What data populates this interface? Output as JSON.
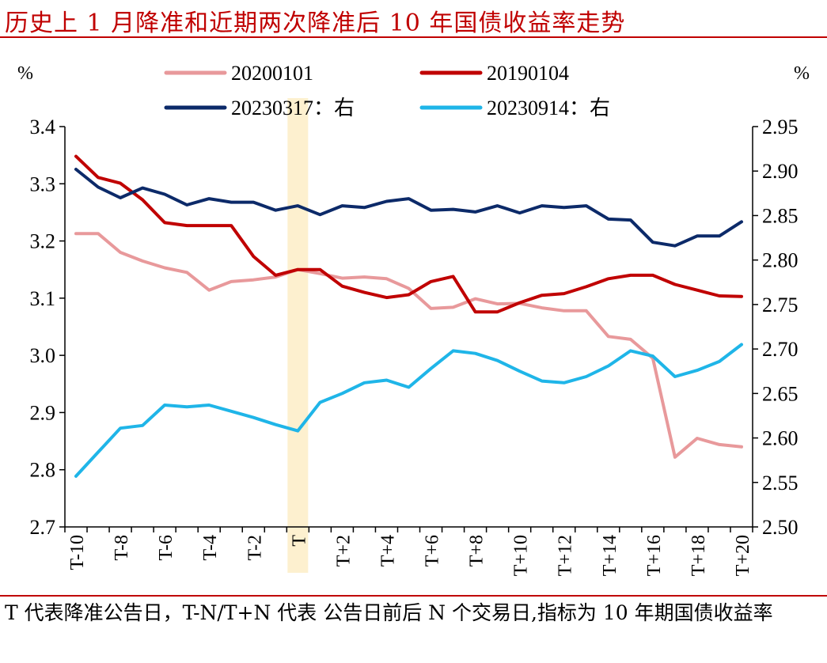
{
  "title": "历史上 1 月降准和近期两次降准后 10 年国债收益率走势",
  "footnote": "T 代表降准公告日，T-N/T+N 代表 公告日前后 N 个交易日,指标为 10 年期国债收益率",
  "colors": {
    "title": "#c00000",
    "rule": "#c00000",
    "highlight": "#fdf0cf",
    "s20200101": "#e8999b",
    "s20190104": "#c00000",
    "s20230317": "#0c2a69",
    "s20230914": "#1fb5e8"
  },
  "chart_data": {
    "type": "line",
    "x": [
      "T-10",
      "T-9",
      "T-8",
      "T-7",
      "T-6",
      "T-5",
      "T-4",
      "T-3",
      "T-2",
      "T-1",
      "T",
      "T+1",
      "T+2",
      "T+3",
      "T+4",
      "T+5",
      "T+6",
      "T+7",
      "T+8",
      "T+9",
      "T+10",
      "T+11",
      "T+12",
      "T+13",
      "T+14",
      "T+15",
      "T+16",
      "T+17",
      "T+18",
      "T+19",
      "T+20"
    ],
    "x_tick_labels": [
      "T-10",
      "",
      "T-8",
      "",
      "T-6",
      "",
      "T-4",
      "",
      "T-2",
      "",
      "T",
      "",
      "T+2",
      "",
      "T+4",
      "",
      "T+6",
      "",
      "T+8",
      "",
      "T+10",
      "",
      "T+12",
      "",
      "T+14",
      "",
      "T+16",
      "",
      "T+18",
      "",
      "T+20"
    ],
    "highlight_category": "T",
    "left_axis": {
      "unit": "%",
      "ylim": [
        2.7,
        3.4
      ],
      "ticks": [
        "2.7",
        "2.8",
        "2.9",
        "3.0",
        "3.1",
        "3.2",
        "3.3",
        "3.4"
      ]
    },
    "right_axis": {
      "unit": "%",
      "ylim": [
        2.5,
        2.95
      ],
      "ticks": [
        "2.50",
        "2.55",
        "2.60",
        "2.65",
        "2.70",
        "2.75",
        "2.80",
        "2.85",
        "2.90",
        "2.95"
      ]
    },
    "legend_position": "top",
    "grid": false,
    "series": [
      {
        "name": "20200101",
        "axis": "left",
        "color_key": "s20200101",
        "values": [
          3.213,
          3.213,
          3.18,
          3.165,
          3.153,
          3.145,
          3.114,
          3.129,
          3.132,
          3.137,
          3.15,
          3.143,
          3.135,
          3.137,
          3.134,
          3.117,
          3.082,
          3.084,
          3.099,
          3.09,
          3.091,
          3.083,
          3.078,
          3.078,
          3.033,
          3.028,
          2.995,
          2.822,
          2.855,
          2.844,
          2.84
        ]
      },
      {
        "name": "20190104",
        "axis": "left",
        "color_key": "s20190104",
        "values": [
          3.348,
          3.311,
          3.301,
          3.272,
          3.232,
          3.227,
          3.227,
          3.227,
          3.173,
          3.14,
          3.15,
          3.15,
          3.121,
          3.11,
          3.101,
          3.106,
          3.129,
          3.138,
          3.076,
          3.076,
          3.092,
          3.105,
          3.108,
          3.12,
          3.134,
          3.14,
          3.14,
          3.124,
          3.114,
          3.104,
          3.103
        ]
      },
      {
        "name": "20230317：右",
        "axis": "right",
        "color_key": "s20230317",
        "values": [
          2.902,
          2.882,
          2.87,
          2.881,
          2.874,
          2.862,
          2.869,
          2.865,
          2.865,
          2.856,
          2.861,
          2.851,
          2.861,
          2.859,
          2.866,
          2.869,
          2.856,
          2.857,
          2.854,
          2.861,
          2.853,
          2.861,
          2.859,
          2.861,
          2.846,
          2.845,
          2.82,
          2.816,
          2.827,
          2.827,
          2.843
        ]
      },
      {
        "name": "20230914：右",
        "axis": "right",
        "color_key": "s20230914",
        "values": [
          2.557,
          2.584,
          2.611,
          2.614,
          2.637,
          2.635,
          2.637,
          2.63,
          2.623,
          2.615,
          2.608,
          2.64,
          2.65,
          2.662,
          2.665,
          2.657,
          2.678,
          2.698,
          2.695,
          2.687,
          2.675,
          2.664,
          2.662,
          2.669,
          2.681,
          2.698,
          2.692,
          2.669,
          2.676,
          2.686,
          2.705
        ]
      }
    ]
  }
}
